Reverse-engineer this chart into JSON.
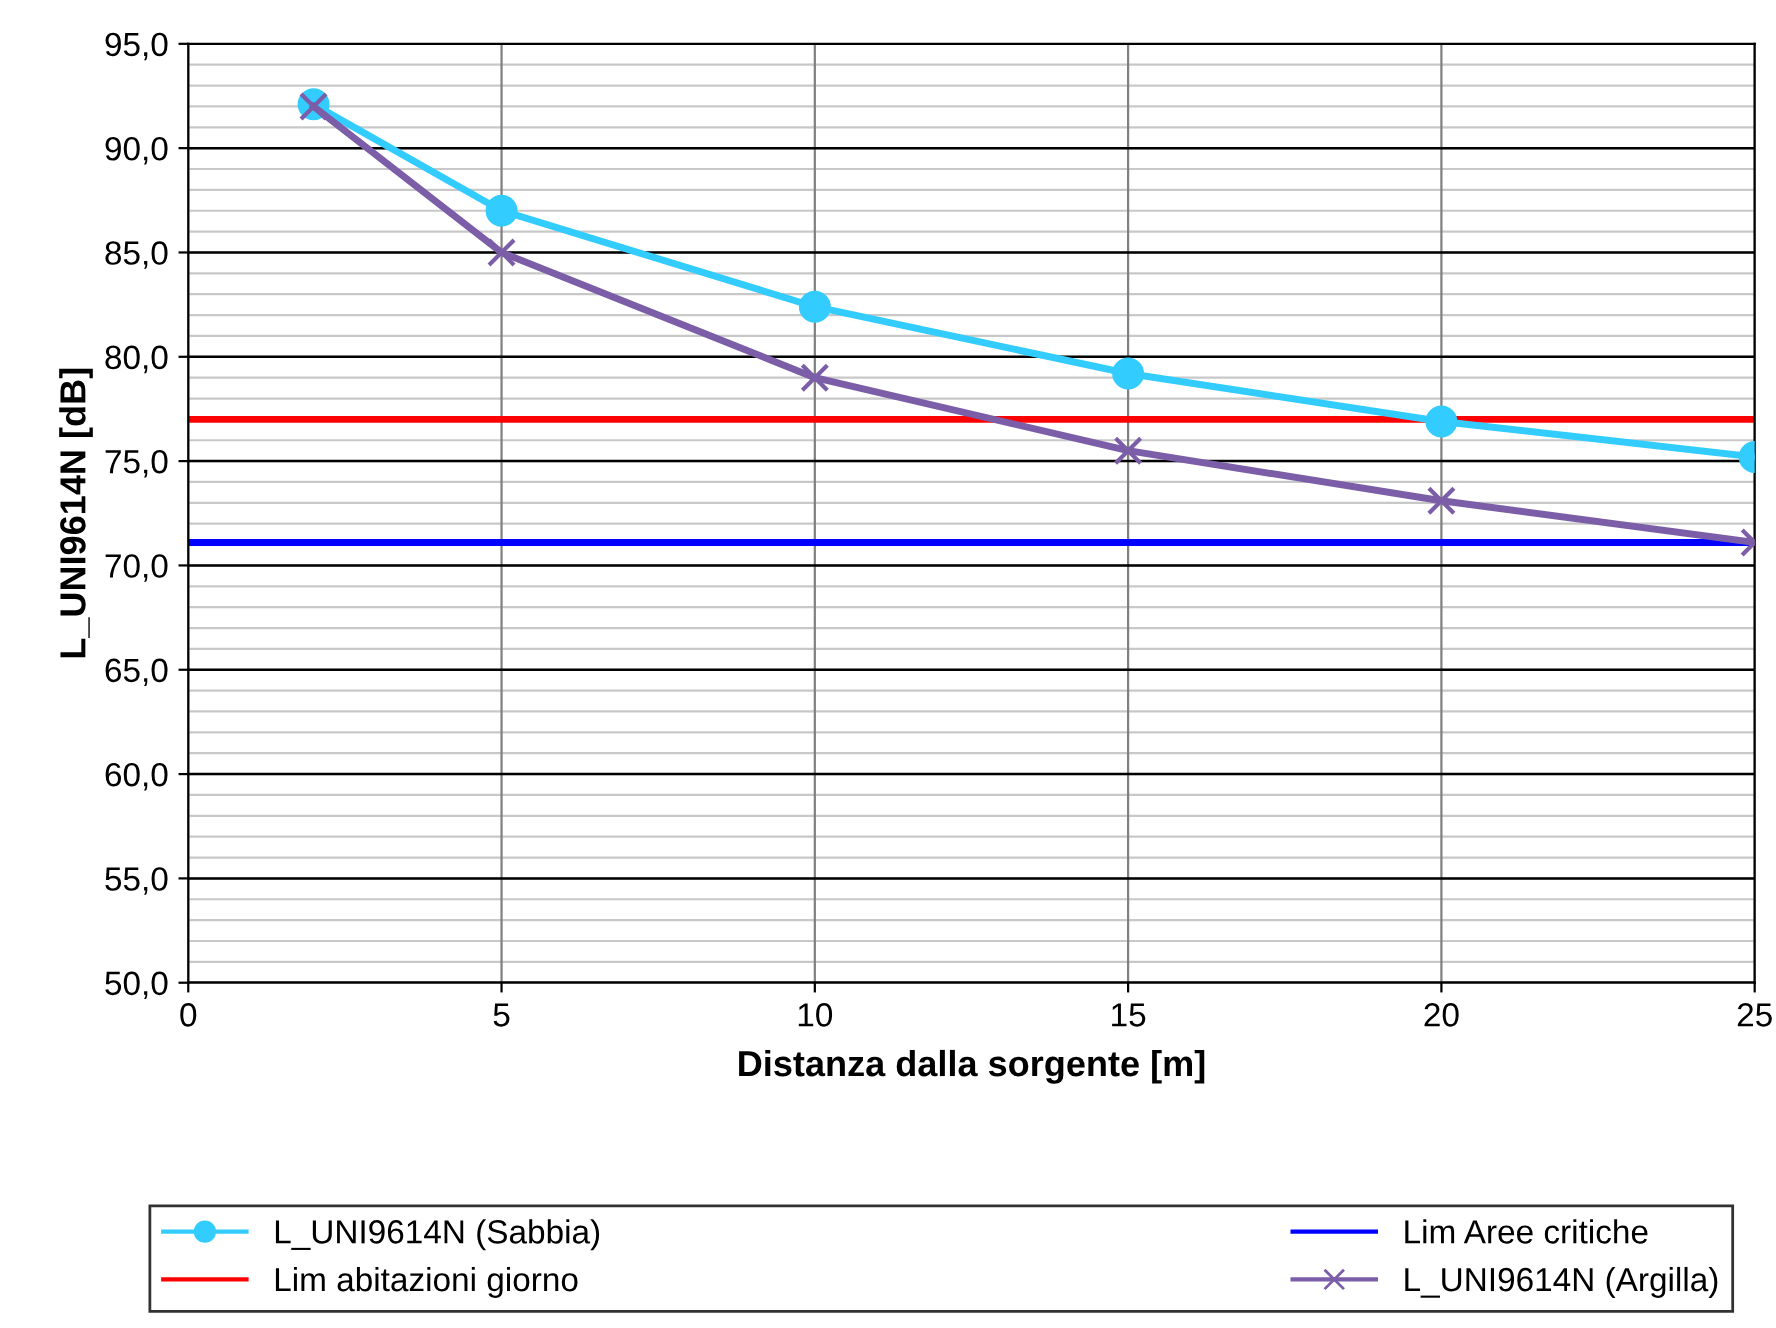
{
  "chart_data": {
    "type": "line",
    "xlabel": "Distanza dalla sorgente [m]",
    "ylabel": "L_UNI9614N [dB]",
    "x": [
      2,
      5,
      10,
      15,
      20,
      25
    ],
    "series": [
      {
        "name": "L_UNI9614N (Sabbia)",
        "color": "#33ccff",
        "marker": "circle",
        "values": [
          92.1,
          87.0,
          82.4,
          79.2,
          76.9,
          75.2
        ]
      },
      {
        "name": "L_UNI9614N (Argilla)",
        "color": "#7b5ea7",
        "marker": "cross",
        "values": [
          92.0,
          85.0,
          79.0,
          75.5,
          73.1,
          71.1
        ]
      }
    ],
    "ref_lines": [
      {
        "axis": "y",
        "value": 77.0,
        "label": "Lim abitazioni giorno",
        "color": "#ff0000"
      },
      {
        "axis": "y",
        "value": 71.1,
        "label": "Lim Aree critiche",
        "color": "#0000ff"
      }
    ],
    "xlim": [
      0,
      25
    ],
    "xticks": [
      0,
      5,
      10,
      15,
      20,
      25
    ],
    "ylim": [
      50,
      95
    ],
    "yticks": [
      {
        "value": 50,
        "label": "50,0"
      },
      {
        "value": 55,
        "label": "55,0"
      },
      {
        "value": 60,
        "label": "60,0"
      },
      {
        "value": 65,
        "label": "65,0"
      },
      {
        "value": 70,
        "label": "70,0"
      },
      {
        "value": 75,
        "label": "75,0"
      },
      {
        "value": 80,
        "label": "80,0"
      },
      {
        "value": 85,
        "label": "85,0"
      },
      {
        "value": 90,
        "label": "90,0"
      },
      {
        "value": 95,
        "label": "95,0"
      }
    ],
    "grid": true,
    "legend": "bottom",
    "line_style": "solid"
  }
}
